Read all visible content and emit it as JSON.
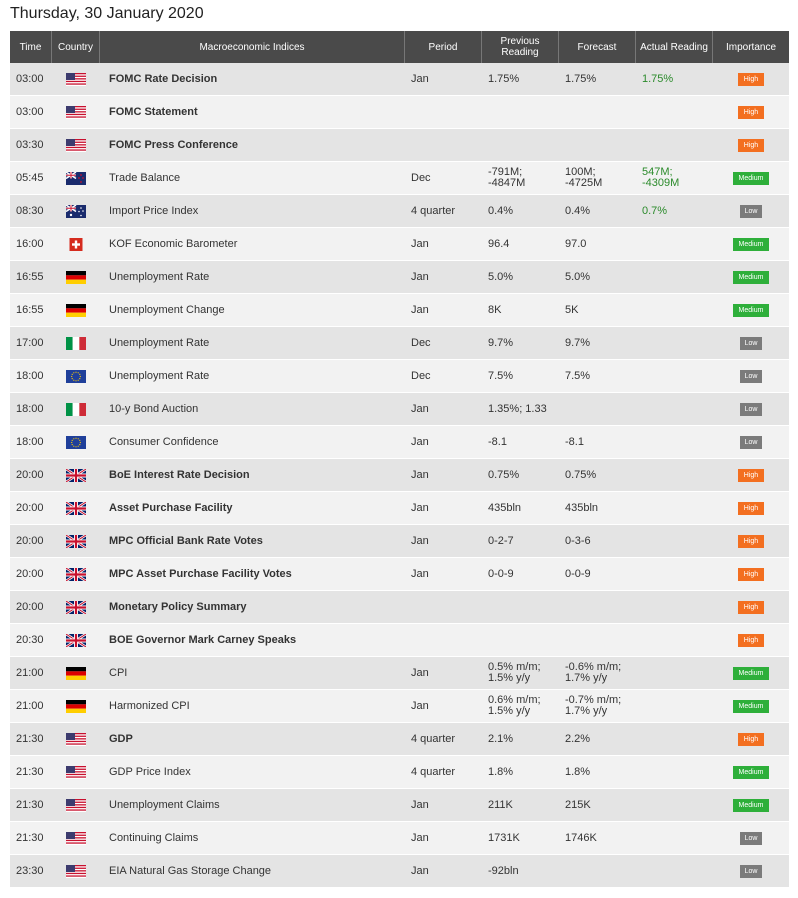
{
  "page": {
    "title": "Thursday, 30 January 2020"
  },
  "table": {
    "headers": {
      "time": "Time",
      "country": "Country",
      "indices": "Macroeconomic Indices",
      "period": "Period",
      "previous": "Previous Reading",
      "forecast": "Forecast",
      "actual": "Actual Reading",
      "importance": "Importance"
    },
    "rows": [
      {
        "time": "03:00",
        "country": "us-flag-icon",
        "name": "FOMC Rate Decision",
        "bold": true,
        "period": "Jan",
        "prev": "1.75%",
        "fore": "1.75%",
        "act": "1.75%",
        "imp": "High",
        "impClass": "high"
      },
      {
        "time": "03:00",
        "country": "us-flag-icon",
        "name": "FOMC Statement",
        "bold": true,
        "period": "",
        "prev": "",
        "fore": "",
        "act": "",
        "imp": "High",
        "impClass": "high"
      },
      {
        "time": "03:30",
        "country": "us-flag-icon",
        "name": "FOMC Press Conference",
        "bold": true,
        "period": "",
        "prev": "",
        "fore": "",
        "act": "",
        "imp": "High",
        "impClass": "high"
      },
      {
        "time": "05:45",
        "country": "nz-flag-icon",
        "name": "Trade Balance",
        "bold": false,
        "period": "Dec",
        "prev": "-791M;\n-4847M",
        "fore": "100M;\n-4725M",
        "act": "547M;\n-4309M",
        "imp": "Medium",
        "impClass": "medium"
      },
      {
        "time": "08:30",
        "country": "au-flag-icon",
        "name": "Import Price Index",
        "bold": false,
        "period": "4 quarter",
        "prev": "0.4%",
        "fore": "0.4%",
        "act": "0.7%",
        "imp": "Low",
        "impClass": "low"
      },
      {
        "time": "16:00",
        "country": "ch-flag-icon",
        "name": "KOF Economic Barometer",
        "bold": false,
        "period": "Jan",
        "prev": "96.4",
        "fore": "97.0",
        "act": "",
        "imp": "Medium",
        "impClass": "medium"
      },
      {
        "time": "16:55",
        "country": "de-flag-icon",
        "name": "Unemployment Rate",
        "bold": false,
        "period": "Jan",
        "prev": "5.0%",
        "fore": "5.0%",
        "act": "",
        "imp": "Medium",
        "impClass": "medium"
      },
      {
        "time": "16:55",
        "country": "de-flag-icon",
        "name": "Unemployment Change",
        "bold": false,
        "period": "Jan",
        "prev": "8K",
        "fore": "5K",
        "act": "",
        "imp": "Medium",
        "impClass": "medium"
      },
      {
        "time": "17:00",
        "country": "it-flag-icon",
        "name": "Unemployment Rate",
        "bold": false,
        "period": "Dec",
        "prev": "9.7%",
        "fore": "9.7%",
        "act": "",
        "imp": "Low",
        "impClass": "low"
      },
      {
        "time": "18:00",
        "country": "eu-flag-icon",
        "name": "Unemployment Rate",
        "bold": false,
        "period": "Dec",
        "prev": "7.5%",
        "fore": "7.5%",
        "act": "",
        "imp": "Low",
        "impClass": "low"
      },
      {
        "time": "18:00",
        "country": "it-flag-icon",
        "name": "10-y Bond Auction",
        "bold": false,
        "period": "Jan",
        "prev": "1.35%; 1.33",
        "fore": "",
        "act": "",
        "imp": "Low",
        "impClass": "low"
      },
      {
        "time": "18:00",
        "country": "eu-flag-icon",
        "name": "Consumer Confidence",
        "bold": false,
        "period": "Jan",
        "prev": "-8.1",
        "fore": "-8.1",
        "act": "",
        "imp": "Low",
        "impClass": "low"
      },
      {
        "time": "20:00",
        "country": "uk-flag-icon",
        "name": "BoE Interest Rate Decision",
        "bold": true,
        "period": "Jan",
        "prev": "0.75%",
        "fore": "0.75%",
        "act": "",
        "imp": "High",
        "impClass": "high"
      },
      {
        "time": "20:00",
        "country": "uk-flag-icon",
        "name": "Asset Purchase Facility",
        "bold": true,
        "period": "Jan",
        "prev": "435bln",
        "fore": "435bln",
        "act": "",
        "imp": "High",
        "impClass": "high"
      },
      {
        "time": "20:00",
        "country": "uk-flag-icon",
        "name": "MPC Official Bank Rate Votes",
        "bold": true,
        "period": "Jan",
        "prev": "0-2-7",
        "fore": "0-3-6",
        "act": "",
        "imp": "High",
        "impClass": "high"
      },
      {
        "time": "20:00",
        "country": "uk-flag-icon",
        "name": "MPC Asset Purchase Facility Votes",
        "bold": true,
        "period": "Jan",
        "prev": "0-0-9",
        "fore": "0-0-9",
        "act": "",
        "imp": "High",
        "impClass": "high"
      },
      {
        "time": "20:00",
        "country": "uk-flag-icon",
        "name": "Monetary Policy Summary",
        "bold": true,
        "period": "",
        "prev": "",
        "fore": "",
        "act": "",
        "imp": "High",
        "impClass": "high"
      },
      {
        "time": "20:30",
        "country": "uk-flag-icon",
        "name": "BOE Governor Mark Carney Speaks",
        "bold": true,
        "period": "",
        "prev": "",
        "fore": "",
        "act": "",
        "imp": "High",
        "impClass": "high"
      },
      {
        "time": "21:00",
        "country": "de-flag-icon",
        "name": "CPI",
        "bold": false,
        "period": "Jan",
        "prev": "0.5% m/m;\n1.5% y/y",
        "fore": "-0.6% m/m;\n1.7% y/y",
        "act": "",
        "imp": "Medium",
        "impClass": "medium"
      },
      {
        "time": "21:00",
        "country": "de-flag-icon",
        "name": "Harmonized CPI",
        "bold": false,
        "period": "Jan",
        "prev": "0.6% m/m;\n1.5% y/y",
        "fore": "-0.7% m/m;\n1.7% y/y",
        "act": "",
        "imp": "Medium",
        "impClass": "medium"
      },
      {
        "time": "21:30",
        "country": "us-flag-icon",
        "name": "GDP",
        "bold": true,
        "period": "4 quarter",
        "prev": "2.1%",
        "fore": "2.2%",
        "act": "",
        "imp": "High",
        "impClass": "high"
      },
      {
        "time": "21:30",
        "country": "us-flag-icon",
        "name": "GDP Price Index",
        "bold": false,
        "period": "4 quarter",
        "prev": "1.8%",
        "fore": "1.8%",
        "act": "",
        "imp": "Medium",
        "impClass": "medium"
      },
      {
        "time": "21:30",
        "country": "us-flag-icon",
        "name": "Unemployment Claims",
        "bold": false,
        "period": "Jan",
        "prev": "211K",
        "fore": "215K",
        "act": "",
        "imp": "Medium",
        "impClass": "medium"
      },
      {
        "time": "21:30",
        "country": "us-flag-icon",
        "name": "Continuing Claims",
        "bold": false,
        "period": "Jan",
        "prev": "1731K",
        "fore": "1746K",
        "act": "",
        "imp": "Low",
        "impClass": "low"
      },
      {
        "time": "23:30",
        "country": "us-flag-icon",
        "name": "EIA Natural Gas Storage Change",
        "bold": false,
        "period": "Jan",
        "prev": "-92bln",
        "fore": "",
        "act": "",
        "imp": "Low",
        "impClass": "low"
      }
    ]
  },
  "colors": {
    "header_bg": "#4a4a4a",
    "high": "#f36f20",
    "medium": "#2eaf3a",
    "low": "#7b7b7b",
    "actual_text": "#2a8a2a"
  }
}
